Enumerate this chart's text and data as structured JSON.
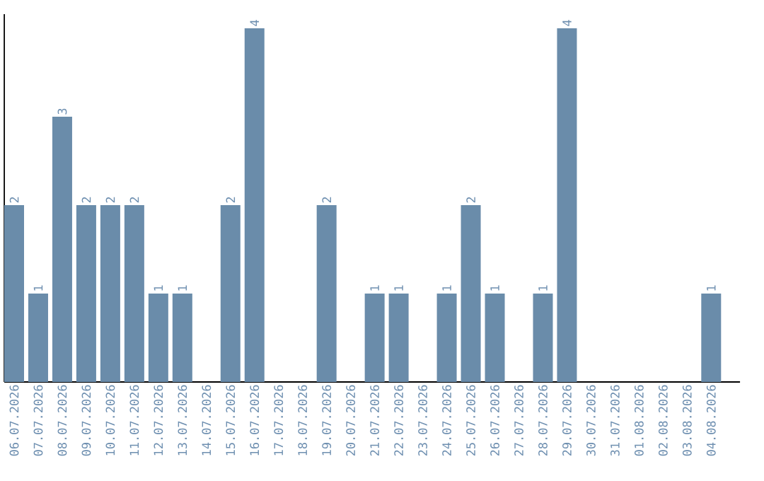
{
  "chart_data": {
    "type": "bar",
    "color": "#6a8caa",
    "categories": [
      "06.07.2026",
      "07.07.2026",
      "08.07.2026",
      "09.07.2026",
      "10.07.2026",
      "11.07.2026",
      "12.07.2026",
      "13.07.2026",
      "14.07.2026",
      "15.07.2026",
      "16.07.2026",
      "17.07.2026",
      "18.07.2026",
      "19.07.2026",
      "20.07.2026",
      "21.07.2026",
      "22.07.2026",
      "23.07.2026",
      "24.07.2026",
      "25.07.2026",
      "26.07.2026",
      "27.07.2026",
      "28.07.2026",
      "29.07.2026",
      "30.07.2026",
      "31.07.2026",
      "01.08.2026",
      "02.08.2026",
      "03.08.2026",
      "04.08.2026"
    ],
    "values": [
      2,
      1,
      3,
      2,
      2,
      2,
      1,
      1,
      0,
      2,
      4,
      0,
      0,
      2,
      0,
      1,
      1,
      0,
      1,
      2,
      1,
      0,
      1,
      4,
      0,
      0,
      0,
      0,
      0,
      1
    ],
    "value_labels": [
      "2",
      "1",
      "3",
      "2",
      "2",
      "2",
      "1",
      "1",
      null,
      "2",
      "4",
      null,
      null,
      "2",
      null,
      "1",
      "1",
      null,
      "1",
      "2",
      "1",
      null,
      "1",
      "4",
      null,
      null,
      null,
      null,
      null,
      "1"
    ]
  }
}
